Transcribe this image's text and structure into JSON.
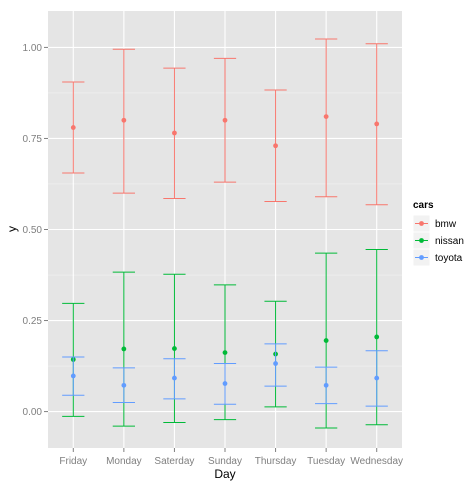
{
  "chart_data": {
    "type": "errorbar",
    "xlabel": "Day",
    "ylabel": "y",
    "categories": [
      "Friday",
      "Monday",
      "Saterday",
      "Sunday",
      "Thursday",
      "Tuesday",
      "Wednesday"
    ],
    "ylim": [
      -0.1,
      1.1
    ],
    "yticks": [
      0.0,
      0.25,
      0.5,
      0.75,
      1.0
    ],
    "ytick_labels": [
      "0.00",
      "0.25",
      "0.50",
      "0.75",
      "1.00"
    ],
    "grid": true,
    "background": "#e5e5e5",
    "legend": {
      "title": "cars",
      "position": "right"
    },
    "series": [
      {
        "name": "bmw",
        "color": "#f8766d",
        "values": [
          0.78,
          0.8,
          0.765,
          0.8,
          0.73,
          0.81,
          0.79
        ],
        "lower": [
          0.655,
          0.6,
          0.585,
          0.63,
          0.577,
          0.59,
          0.568
        ],
        "upper": [
          0.905,
          0.995,
          0.943,
          0.97,
          0.883,
          1.023,
          1.01
        ]
      },
      {
        "name": "nissan",
        "color": "#00ba38",
        "values": [
          0.143,
          0.172,
          0.173,
          0.162,
          0.158,
          0.195,
          0.205
        ],
        "lower": [
          -0.013,
          -0.04,
          -0.03,
          -0.022,
          0.013,
          -0.045,
          -0.036
        ],
        "upper": [
          0.297,
          0.383,
          0.377,
          0.348,
          0.303,
          0.435,
          0.445
        ]
      },
      {
        "name": "toyota",
        "color": "#619cff",
        "values": [
          0.098,
          0.072,
          0.092,
          0.077,
          0.132,
          0.072,
          0.092
        ],
        "lower": [
          0.045,
          0.025,
          0.035,
          0.02,
          0.07,
          0.022,
          0.015
        ],
        "upper": [
          0.15,
          0.12,
          0.145,
          0.132,
          0.186,
          0.122,
          0.167
        ]
      }
    ]
  }
}
